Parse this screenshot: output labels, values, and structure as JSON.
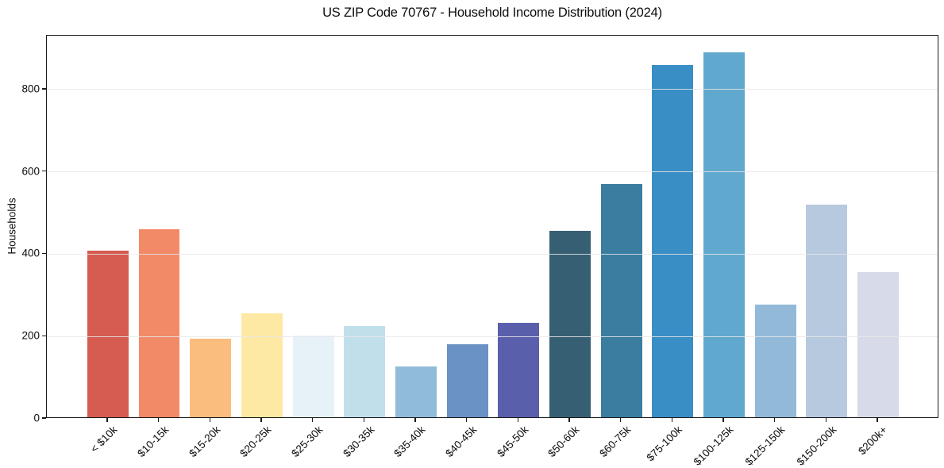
{
  "title": "US ZIP Code 70767 - Household Income Distribution (2024)",
  "chart_data": {
    "type": "bar",
    "title": "US ZIP Code 70767 - Household Income Distribution (2024)",
    "xlabel": "",
    "ylabel": "Households",
    "categories": [
      "< $10k",
      "$10-15k",
      "$15-20k",
      "$20-25k",
      "$25-30k",
      "$30-35k",
      "$35-40k",
      "$40-45k",
      "$45-50k",
      "$50-60k",
      "$60-75k",
      "$75-100k",
      "$100-125k",
      "$125-150k",
      "$150-200k",
      "$200k+"
    ],
    "values": [
      404,
      457,
      190,
      253,
      198,
      221,
      124,
      178,
      230,
      453,
      566,
      855,
      886,
      273,
      516,
      352
    ],
    "bar_colors": [
      "#d65b51",
      "#f28a68",
      "#fbbd7d",
      "#fde8a4",
      "#e6f2f8",
      "#c0dfeb",
      "#91bcd9",
      "#6a92c4",
      "#5a5fab",
      "#375f73",
      "#3a7da1",
      "#398ec5",
      "#61a8ce",
      "#92bad8",
      "#b7c9df",
      "#d7dae8"
    ],
    "yticks": [
      0,
      200,
      400,
      600,
      800
    ],
    "ylim": [
      0,
      931
    ],
    "grid": "horizontal",
    "legend": "none",
    "background_color": "#ffffff",
    "spine_color": "#1a1a1a",
    "grid_color": "#e7e7e7",
    "x_label_rotation_deg": 45
  }
}
